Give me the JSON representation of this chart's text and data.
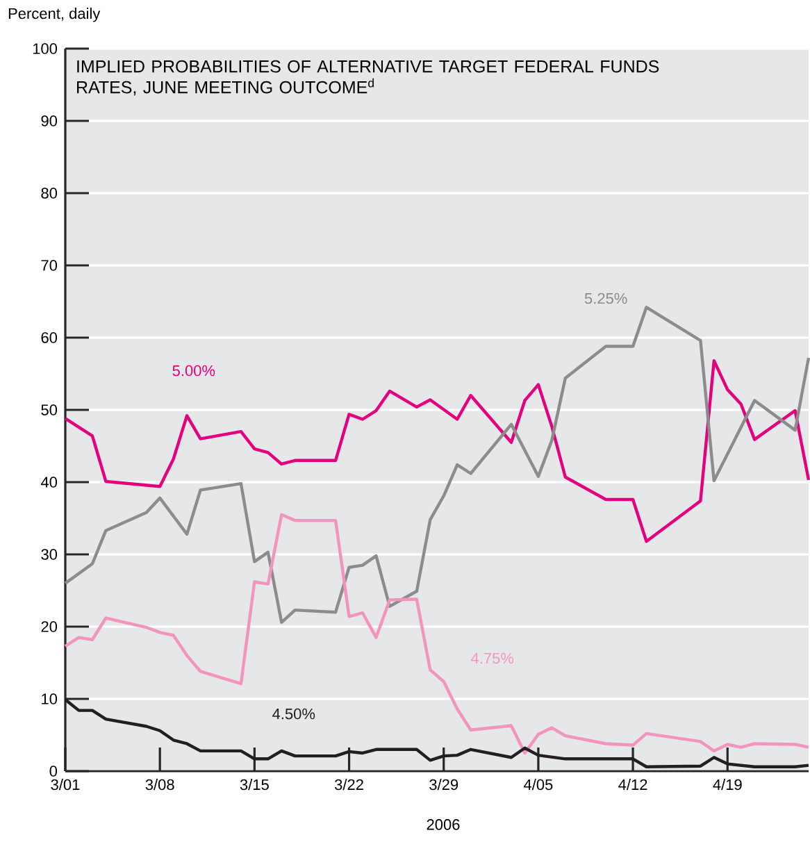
{
  "chart_data": {
    "type": "line",
    "title": "IMPLIED PROBABILITIES OF ALTERNATIVE TARGET FEDERAL FUNDS RATES, JUNE MEETING OUTCOME$^{d}$",
    "ylabel": "Percent, daily",
    "xlabel": "2006",
    "xlim": [
      "2006-03-01",
      "2006-04-25"
    ],
    "ylim": [
      0,
      100
    ],
    "xticks": [
      {
        "value": "2006-03-01",
        "label": "3/01"
      },
      {
        "value": "2006-03-08",
        "label": "3/08"
      },
      {
        "value": "2006-03-15",
        "label": "3/15"
      },
      {
        "value": "2006-03-22",
        "label": "3/22"
      },
      {
        "value": "2006-03-29",
        "label": "3/29"
      },
      {
        "value": "2006-04-05",
        "label": "4/05"
      },
      {
        "value": "2006-04-12",
        "label": "4/12"
      },
      {
        "value": "2006-04-19",
        "label": "4/19"
      }
    ],
    "yticks": [
      0,
      10,
      20,
      30,
      40,
      50,
      60,
      70,
      80,
      90,
      100
    ],
    "grid": "y",
    "legend": false,
    "marker": "none",
    "line_style": "solid",
    "series": [
      {
        "name": "5.00%",
        "color": "#e5007e",
        "x": [
          "2006-03-01",
          "2006-03-02",
          "2006-03-03",
          "2006-03-04",
          "2006-03-08",
          "2006-03-09",
          "2006-03-10",
          "2006-03-11",
          "2006-03-14",
          "2006-03-15",
          "2006-03-16",
          "2006-03-17",
          "2006-03-18",
          "2006-03-21",
          "2006-03-22",
          "2006-03-23",
          "2006-03-24",
          "2006-03-25",
          "2006-03-27",
          "2006-03-28",
          "2006-03-30",
          "2006-03-31",
          "2006-04-03",
          "2006-04-04",
          "2006-04-05",
          "2006-04-06",
          "2006-04-07",
          "2006-04-10",
          "2006-04-12",
          "2006-04-13",
          "2006-04-17",
          "2006-04-18",
          "2006-04-19",
          "2006-04-20",
          "2006-04-21",
          "2006-04-24",
          "2006-04-25"
        ],
        "values": [
          48.8,
          47.6,
          46.4,
          40.1,
          39.4,
          43.2,
          49.2,
          46.0,
          47.0,
          44.6,
          44.1,
          42.5,
          43.0,
          43.0,
          49.4,
          48.7,
          49.9,
          52.6,
          50.4,
          51.4,
          48.7,
          52.0,
          45.5,
          51.3,
          53.5,
          47.7,
          40.7,
          37.6,
          37.6,
          31.8,
          37.4,
          56.8,
          52.8,
          50.8,
          45.9,
          49.9,
          40.3
        ]
      },
      {
        "name": "5.25%",
        "color": "#8c8c8c",
        "x": [
          "2006-03-01",
          "2006-03-03",
          "2006-03-04",
          "2006-03-07",
          "2006-03-08",
          "2006-03-10",
          "2006-03-11",
          "2006-03-14",
          "2006-03-15",
          "2006-03-16",
          "2006-03-17",
          "2006-03-18",
          "2006-03-21",
          "2006-03-22",
          "2006-03-23",
          "2006-03-24",
          "2006-03-25",
          "2006-03-27",
          "2006-03-28",
          "2006-03-29",
          "2006-03-30",
          "2006-03-31",
          "2006-04-03",
          "2006-04-05",
          "2006-04-06",
          "2006-04-07",
          "2006-04-10",
          "2006-04-12",
          "2006-04-13",
          "2006-04-17",
          "2006-04-18",
          "2006-04-21",
          "2006-04-24",
          "2006-04-25"
        ],
        "values": [
          26.0,
          28.7,
          33.3,
          35.8,
          37.8,
          32.8,
          38.9,
          39.8,
          29.0,
          30.3,
          20.6,
          22.3,
          22.0,
          28.2,
          28.5,
          29.8,
          22.8,
          24.9,
          34.8,
          38.1,
          42.4,
          41.2,
          48.0,
          40.8,
          45.8,
          54.4,
          58.8,
          58.8,
          64.2,
          59.6,
          40.2,
          51.3,
          47.2,
          57.2
        ]
      },
      {
        "name": "4.75%",
        "color": "#f394bf",
        "x": [
          "2006-03-01",
          "2006-03-02",
          "2006-03-03",
          "2006-03-04",
          "2006-03-07",
          "2006-03-08",
          "2006-03-09",
          "2006-03-10",
          "2006-03-11",
          "2006-03-14",
          "2006-03-15",
          "2006-03-16",
          "2006-03-17",
          "2006-03-18",
          "2006-03-21",
          "2006-03-22",
          "2006-03-23",
          "2006-03-24",
          "2006-03-25",
          "2006-03-27",
          "2006-03-28",
          "2006-03-29",
          "2006-03-30",
          "2006-03-31",
          "2006-04-03",
          "2006-04-04",
          "2006-04-05",
          "2006-04-06",
          "2006-04-07",
          "2006-04-10",
          "2006-04-12",
          "2006-04-13",
          "2006-04-17",
          "2006-04-18",
          "2006-04-19",
          "2006-04-20",
          "2006-04-21",
          "2006-04-24",
          "2006-04-25"
        ],
        "values": [
          17.3,
          18.5,
          18.2,
          21.2,
          19.9,
          19.2,
          18.8,
          16.0,
          13.8,
          12.1,
          26.2,
          25.9,
          35.5,
          34.7,
          34.7,
          21.4,
          21.9,
          18.5,
          23.7,
          23.8,
          14.0,
          12.4,
          8.6,
          5.7,
          6.3,
          2.5,
          5.1,
          6.0,
          4.9,
          3.8,
          3.6,
          5.2,
          4.1,
          2.8,
          3.7,
          3.3,
          3.8,
          3.7,
          3.3
        ]
      },
      {
        "name": "4.50%",
        "color": "#231f20",
        "x": [
          "2006-03-01",
          "2006-03-02",
          "2006-03-03",
          "2006-03-04",
          "2006-03-07",
          "2006-03-08",
          "2006-03-09",
          "2006-03-10",
          "2006-03-11",
          "2006-03-14",
          "2006-03-15",
          "2006-03-16",
          "2006-03-17",
          "2006-03-18",
          "2006-03-21",
          "2006-03-22",
          "2006-03-23",
          "2006-03-24",
          "2006-03-27",
          "2006-03-28",
          "2006-03-29",
          "2006-03-30",
          "2006-03-31",
          "2006-04-03",
          "2006-04-04",
          "2006-04-05",
          "2006-04-07",
          "2006-04-12",
          "2006-04-13",
          "2006-04-17",
          "2006-04-18",
          "2006-04-19",
          "2006-04-21",
          "2006-04-24",
          "2006-04-25"
        ],
        "values": [
          9.9,
          8.4,
          8.4,
          7.2,
          6.2,
          5.6,
          4.3,
          3.8,
          2.8,
          2.8,
          1.7,
          1.7,
          2.8,
          2.1,
          2.1,
          2.7,
          2.5,
          3.0,
          3.0,
          1.5,
          2.1,
          2.2,
          3.0,
          1.9,
          3.2,
          2.2,
          1.7,
          1.7,
          0.6,
          0.7,
          1.9,
          1.0,
          0.6,
          0.6,
          0.8
        ]
      }
    ]
  }
}
